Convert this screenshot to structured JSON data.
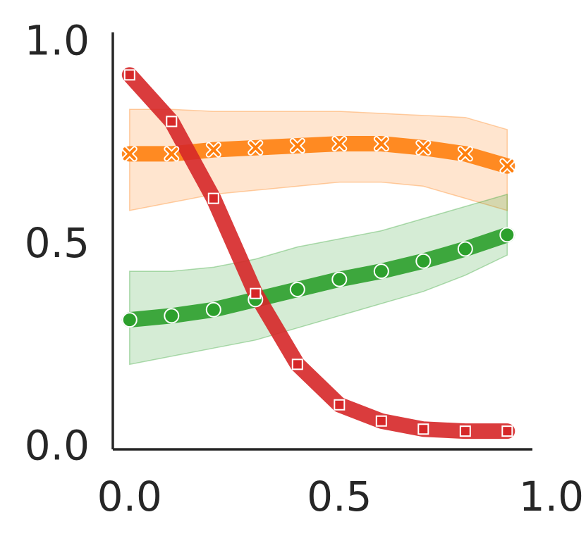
{
  "chart_data": {
    "type": "line",
    "title": "",
    "xlabel": "",
    "ylabel": "",
    "xlim": [
      -0.04,
      0.96
    ],
    "ylim": [
      -0.01,
      1.02
    ],
    "xticks": [
      0.0,
      0.5,
      1.0
    ],
    "xtick_labels": [
      "0.0",
      "0.5",
      "1.0"
    ],
    "yticks": [
      0.0,
      0.5,
      1.0
    ],
    "ytick_labels": [
      "0.0",
      "0.5",
      "1.0"
    ],
    "grid": false,
    "legend": "none",
    "x": [
      0.0,
      0.1,
      0.2,
      0.3,
      0.4,
      0.5,
      0.6,
      0.7,
      0.8,
      0.9
    ],
    "series": [
      {
        "color": "#ff7f0e",
        "marker": "x",
        "values": [
          0.72,
          0.72,
          0.73,
          0.735,
          0.74,
          0.745,
          0.745,
          0.735,
          0.72,
          0.69
        ],
        "band_low": [
          0.58,
          0.6,
          0.62,
          0.63,
          0.64,
          0.65,
          0.65,
          0.64,
          0.61,
          0.58
        ],
        "band_high": [
          0.83,
          0.83,
          0.825,
          0.825,
          0.825,
          0.825,
          0.82,
          0.815,
          0.81,
          0.78
        ]
      },
      {
        "color": "#2ca02c",
        "marker": "circle",
        "values": [
          0.31,
          0.32,
          0.335,
          0.36,
          0.385,
          0.41,
          0.43,
          0.455,
          0.485,
          0.52
        ],
        "band_low": [
          0.2,
          0.22,
          0.24,
          0.26,
          0.29,
          0.32,
          0.35,
          0.38,
          0.42,
          0.47
        ],
        "band_high": [
          0.43,
          0.43,
          0.44,
          0.46,
          0.49,
          0.51,
          0.53,
          0.56,
          0.59,
          0.62
        ]
      },
      {
        "color": "#d62728",
        "marker": "square",
        "values": [
          0.915,
          0.8,
          0.61,
          0.375,
          0.2,
          0.1,
          0.06,
          0.04,
          0.035,
          0.035
        ],
        "band_low": [],
        "band_high": []
      }
    ]
  }
}
